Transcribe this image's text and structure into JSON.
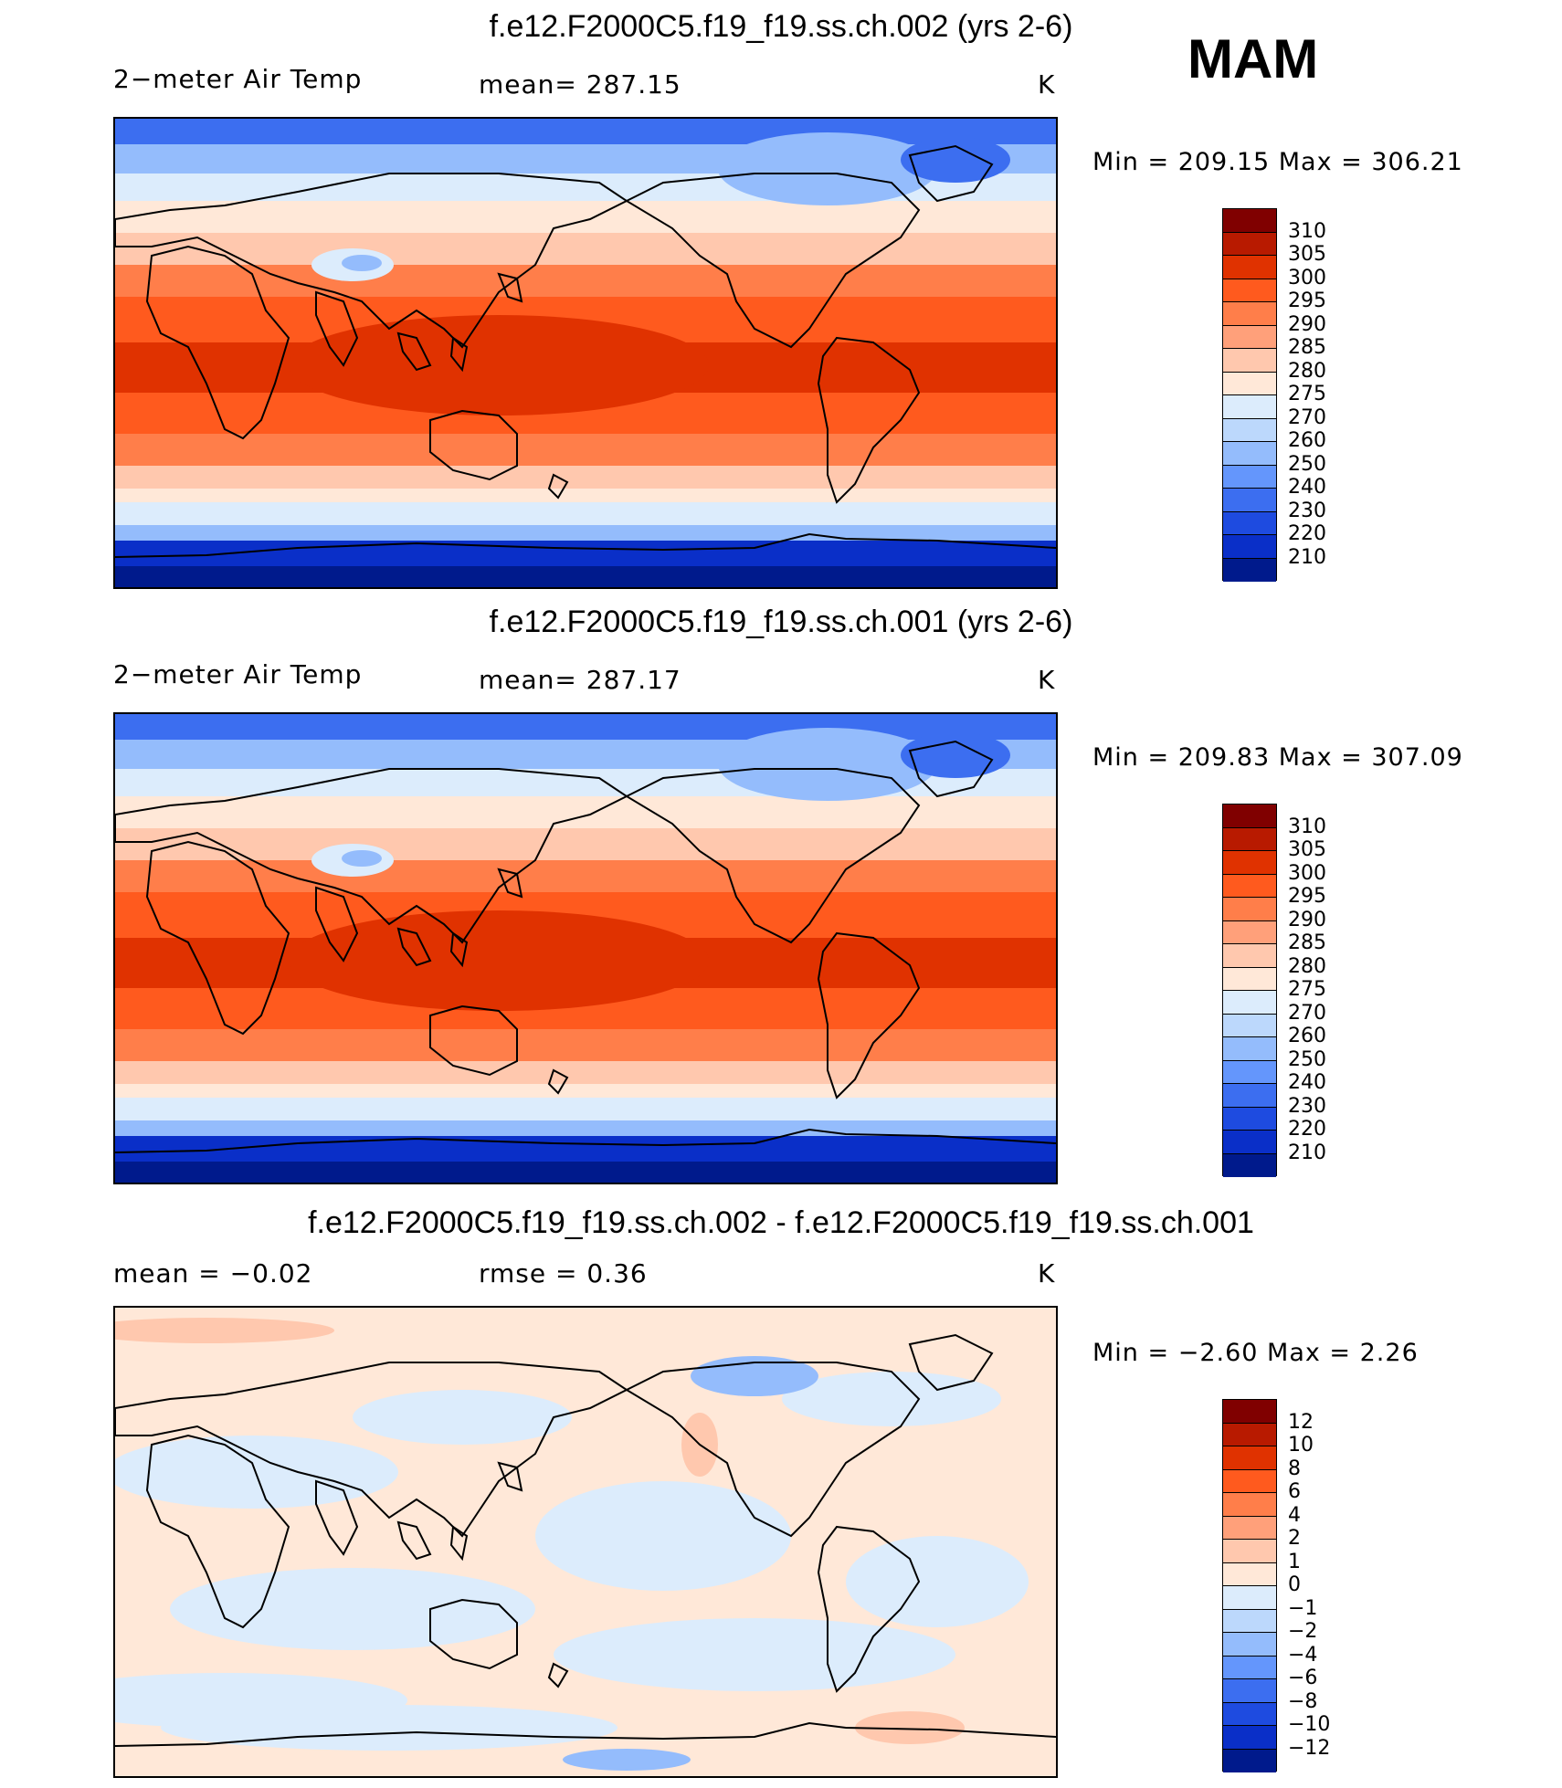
{
  "season": "MAM",
  "panels": [
    {
      "title": "f.e12.F2000C5.f19_f19.ss.ch.002 (yrs 2-6)",
      "left_label": "2−meter Air Temp",
      "center_label": "mean=  287.15",
      "units": "K",
      "minmax": "Min  =  209.15  Max  =  306.21",
      "kind": "abs",
      "colorbar_labels": [
        "310",
        "305",
        "300",
        "295",
        "290",
        "285",
        "280",
        "275",
        "270",
        "260",
        "250",
        "240",
        "230",
        "220",
        "210"
      ]
    },
    {
      "title": "f.e12.F2000C5.f19_f19.ss.ch.001 (yrs 2-6)",
      "left_label": "2−meter Air Temp",
      "center_label": "mean=  287.17",
      "units": "K",
      "minmax": "Min  =  209.83  Max  =  307.09",
      "kind": "abs",
      "colorbar_labels": [
        "310",
        "305",
        "300",
        "295",
        "290",
        "285",
        "280",
        "275",
        "270",
        "260",
        "250",
        "240",
        "230",
        "220",
        "210"
      ]
    },
    {
      "title": "f.e12.F2000C5.f19_f19.ss.ch.002 - f.e12.F2000C5.f19_f19.ss.ch.001",
      "left_label": "mean  =   −0.02",
      "center_label": "rmse  =     0.36",
      "units": "K",
      "minmax": "Min  =    −2.60  Max  =      2.26",
      "kind": "diff",
      "colorbar_labels": [
        "12",
        "10",
        "8",
        "6",
        "4",
        "2",
        "1",
        "0",
        "−1",
        "−2",
        "−4",
        "−6",
        "−8",
        "−10",
        "−12"
      ]
    }
  ],
  "palette": [
    "#800000",
    "#b81a00",
    "#e03200",
    "#ff5a1e",
    "#ff7e4a",
    "#ffa07a",
    "#ffc8ae",
    "#ffe8d8",
    "#dcecfc",
    "#bcd8fc",
    "#94bcfc",
    "#6496fc",
    "#3c6ef0",
    "#1e4be0",
    "#0a2fc8",
    "#001a8c"
  ],
  "colors": {
    "abs": {
      "pole_n": "#3c6ef0",
      "subpolar": "#94bcfc",
      "cool": "#dcecfc",
      "mild": "#ffe8d8",
      "warm1": "#ffc8ae",
      "warm2": "#ff7e4a",
      "warm3": "#ff5a1e",
      "hot": "#e03200",
      "pole_s": "#0a2fc8",
      "pole_s2": "#001a8c"
    },
    "diff": {
      "base": "#ffe8d8",
      "neg": "#dcecfc",
      "neg2": "#94bcfc",
      "pos": "#ffc8ae"
    }
  }
}
